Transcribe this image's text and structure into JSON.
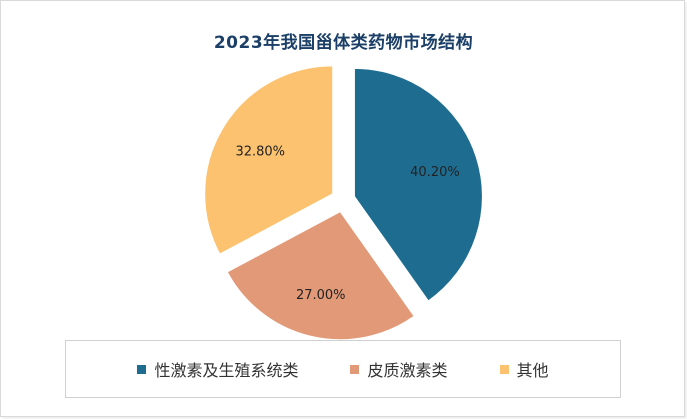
{
  "chart_data": {
    "type": "pie",
    "title": "2023年我国甾体类药物市场结构",
    "series": [
      {
        "name": "性激素及生殖系统类",
        "value": 40.2,
        "label": "40.20%",
        "color": "#1e6d91"
      },
      {
        "name": "皮质激素类",
        "value": 27.0,
        "label": "27.00%",
        "color": "#e29977"
      },
      {
        "name": "其他",
        "value": 32.8,
        "label": "32.80%",
        "color": "#fcc26f"
      }
    ],
    "legend_position": "bottom",
    "exploded": true
  }
}
